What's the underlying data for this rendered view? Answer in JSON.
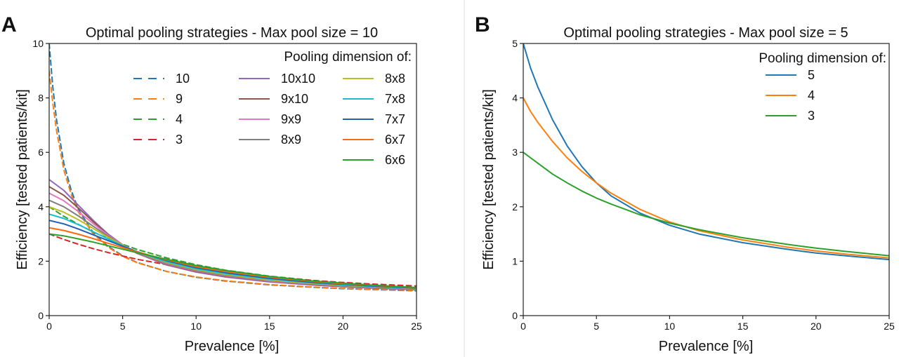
{
  "chart_data": [
    {
      "type": "line",
      "panel": "A",
      "title": "Optimal pooling strategies - Max pool size = 10",
      "xlabel": "Prevalence [%]",
      "ylabel": "Efficiency [tested patients/kit]",
      "xlim": [
        0,
        25
      ],
      "ylim": [
        0,
        10
      ],
      "xticks": [
        0,
        5,
        10,
        15,
        20,
        25
      ],
      "yticks": [
        0,
        2,
        4,
        6,
        8,
        10
      ],
      "grid": false,
      "legend": {
        "title": "Pooling dimension of:",
        "placement": "top-right",
        "columns": [
          [
            "10",
            "9",
            "4",
            "3"
          ],
          [
            "10x10",
            "9x10",
            "9x9",
            "8x9"
          ],
          [
            "8x8",
            "7x8",
            "7x7",
            "6x7",
            "6x6"
          ]
        ]
      },
      "series": [
        {
          "name": "10",
          "style": "dashed",
          "color": "#1f77b4",
          "x": [
            0,
            0.25,
            0.5,
            1,
            1.5,
            2,
            3,
            4,
            5,
            6,
            8,
            10,
            12,
            15,
            18,
            20,
            22,
            25
          ],
          "y": [
            10.0,
            8.4,
            7.2,
            5.6,
            4.6,
            3.9,
            3.05,
            2.55,
            2.2,
            1.95,
            1.62,
            1.41,
            1.27,
            1.13,
            1.04,
            0.99,
            0.96,
            0.91
          ]
        },
        {
          "name": "9",
          "style": "dashed",
          "color": "#ff7f0e",
          "x": [
            0,
            0.25,
            0.5,
            1,
            1.5,
            2,
            3,
            4,
            5,
            6,
            8,
            10,
            12,
            15,
            18,
            20,
            22,
            25
          ],
          "y": [
            9.0,
            7.8,
            6.8,
            5.35,
            4.45,
            3.8,
            3.0,
            2.52,
            2.18,
            1.94,
            1.62,
            1.42,
            1.28,
            1.14,
            1.05,
            1.0,
            0.97,
            0.92
          ]
        },
        {
          "name": "4",
          "style": "dashed",
          "color": "#2ca02c",
          "x": [
            0,
            1,
            2,
            3,
            4,
            5,
            6,
            8,
            10,
            12,
            15,
            18,
            20,
            22,
            25
          ],
          "y": [
            4.0,
            3.65,
            3.35,
            3.07,
            2.84,
            2.62,
            2.43,
            2.12,
            1.87,
            1.67,
            1.45,
            1.29,
            1.2,
            1.13,
            1.04
          ]
        },
        {
          "name": "3",
          "style": "dashed",
          "color": "#d62728",
          "x": [
            0,
            1,
            2,
            3,
            4,
            5,
            6,
            8,
            10,
            12,
            15,
            18,
            20,
            22,
            25
          ],
          "y": [
            3.0,
            2.8,
            2.62,
            2.46,
            2.32,
            2.19,
            2.07,
            1.87,
            1.71,
            1.57,
            1.42,
            1.29,
            1.22,
            1.16,
            1.09
          ]
        },
        {
          "name": "10x10",
          "style": "solid",
          "color": "#9467bd",
          "x": [
            0,
            1,
            2,
            3,
            4,
            5,
            6,
            8,
            10,
            12,
            15,
            18,
            20,
            22,
            25
          ],
          "y": [
            5.0,
            4.6,
            4.05,
            3.5,
            3.0,
            2.6,
            2.28,
            1.86,
            1.6,
            1.42,
            1.24,
            1.12,
            1.06,
            1.01,
            0.95
          ]
        },
        {
          "name": "9x10",
          "style": "solid",
          "color": "#8c564b",
          "x": [
            0,
            1,
            2,
            3,
            4,
            5,
            6,
            8,
            10,
            12,
            15,
            18,
            20,
            22,
            25
          ],
          "y": [
            4.74,
            4.42,
            3.95,
            3.45,
            2.98,
            2.6,
            2.29,
            1.88,
            1.62,
            1.44,
            1.26,
            1.14,
            1.07,
            1.02,
            0.96
          ]
        },
        {
          "name": "9x9",
          "style": "solid",
          "color": "#e377c2",
          "x": [
            0,
            1,
            2,
            3,
            4,
            5,
            6,
            8,
            10,
            12,
            15,
            18,
            20,
            22,
            25
          ],
          "y": [
            4.5,
            4.22,
            3.82,
            3.38,
            2.96,
            2.6,
            2.3,
            1.9,
            1.64,
            1.46,
            1.27,
            1.15,
            1.08,
            1.03,
            0.97
          ]
        },
        {
          "name": "8x9",
          "style": "solid",
          "color": "#7f7f7f",
          "x": [
            0,
            1,
            2,
            3,
            4,
            5,
            6,
            8,
            10,
            12,
            15,
            18,
            20,
            22,
            25
          ],
          "y": [
            4.24,
            4.0,
            3.66,
            3.28,
            2.92,
            2.59,
            2.31,
            1.92,
            1.66,
            1.48,
            1.29,
            1.16,
            1.09,
            1.04,
            0.98
          ]
        },
        {
          "name": "8x8",
          "style": "solid",
          "color": "#bcbd22",
          "x": [
            0,
            1,
            2,
            3,
            4,
            5,
            6,
            8,
            10,
            12,
            15,
            18,
            20,
            22,
            25
          ],
          "y": [
            4.0,
            3.8,
            3.52,
            3.2,
            2.88,
            2.59,
            2.33,
            1.95,
            1.69,
            1.51,
            1.31,
            1.18,
            1.11,
            1.06,
            0.99
          ]
        },
        {
          "name": "7x8",
          "style": "solid",
          "color": "#17becf",
          "x": [
            0,
            1,
            2,
            3,
            4,
            5,
            6,
            8,
            10,
            12,
            15,
            18,
            20,
            22,
            25
          ],
          "y": [
            3.73,
            3.57,
            3.34,
            3.08,
            2.82,
            2.57,
            2.34,
            1.98,
            1.72,
            1.54,
            1.34,
            1.2,
            1.13,
            1.07,
            1.0
          ]
        },
        {
          "name": "7x7",
          "style": "solid",
          "color": "#1f5fb4",
          "x": [
            0,
            1,
            2,
            3,
            4,
            5,
            6,
            8,
            10,
            12,
            15,
            18,
            20,
            22,
            25
          ],
          "y": [
            3.5,
            3.37,
            3.18,
            2.97,
            2.76,
            2.55,
            2.35,
            2.02,
            1.76,
            1.58,
            1.37,
            1.22,
            1.15,
            1.09,
            1.01
          ]
        },
        {
          "name": "6x7",
          "style": "solid",
          "color": "#ff6a0e",
          "x": [
            0,
            1,
            2,
            3,
            4,
            5,
            6,
            8,
            10,
            12,
            15,
            18,
            20,
            22,
            25
          ],
          "y": [
            3.23,
            3.13,
            2.99,
            2.83,
            2.66,
            2.5,
            2.34,
            2.05,
            1.8,
            1.62,
            1.41,
            1.25,
            1.17,
            1.11,
            1.02
          ]
        },
        {
          "name": "6x6",
          "style": "solid",
          "color": "#2ca02c",
          "x": [
            0,
            1,
            2,
            3,
            4,
            5,
            6,
            8,
            10,
            12,
            15,
            18,
            20,
            22,
            25
          ],
          "y": [
            3.0,
            2.93,
            2.82,
            2.7,
            2.57,
            2.44,
            2.31,
            2.07,
            1.84,
            1.66,
            1.44,
            1.27,
            1.19,
            1.12,
            1.03
          ]
        }
      ]
    },
    {
      "type": "line",
      "panel": "B",
      "title": "Optimal pooling strategies - Max pool size = 5",
      "xlabel": "Prevalence [%]",
      "ylabel": "Efficiency [tested patients/kit]",
      "xlim": [
        0,
        25
      ],
      "ylim": [
        0,
        5
      ],
      "xticks": [
        0,
        5,
        10,
        15,
        20,
        25
      ],
      "yticks": [
        0,
        1,
        2,
        3,
        4,
        5
      ],
      "grid": false,
      "legend": {
        "title": "Pooling dimension of:",
        "placement": "top-right",
        "columns": [
          [
            "5",
            "4",
            "3"
          ]
        ]
      },
      "series": [
        {
          "name": "5",
          "style": "solid",
          "color": "#1f77b4",
          "x": [
            0,
            0.5,
            1,
            2,
            3,
            4,
            5,
            6,
            8,
            10,
            12,
            15,
            18,
            20,
            22,
            25
          ],
          "y": [
            5.0,
            4.55,
            4.2,
            3.6,
            3.12,
            2.74,
            2.44,
            2.2,
            1.88,
            1.66,
            1.5,
            1.34,
            1.22,
            1.15,
            1.1,
            1.03
          ]
        },
        {
          "name": "4",
          "style": "solid",
          "color": "#ff7f0e",
          "x": [
            0,
            0.5,
            1,
            2,
            3,
            4,
            5,
            6,
            8,
            10,
            12,
            15,
            18,
            20,
            22,
            25
          ],
          "y": [
            4.0,
            3.75,
            3.55,
            3.2,
            2.9,
            2.65,
            2.44,
            2.25,
            1.95,
            1.72,
            1.56,
            1.39,
            1.26,
            1.19,
            1.13,
            1.06
          ]
        },
        {
          "name": "3",
          "style": "solid",
          "color": "#2ca02c",
          "x": [
            0,
            0.5,
            1,
            2,
            3,
            4,
            5,
            6,
            8,
            10,
            12,
            15,
            18,
            20,
            22,
            25
          ],
          "y": [
            3.0,
            2.9,
            2.8,
            2.6,
            2.44,
            2.29,
            2.16,
            2.05,
            1.85,
            1.7,
            1.58,
            1.43,
            1.31,
            1.24,
            1.18,
            1.1
          ]
        }
      ]
    }
  ]
}
